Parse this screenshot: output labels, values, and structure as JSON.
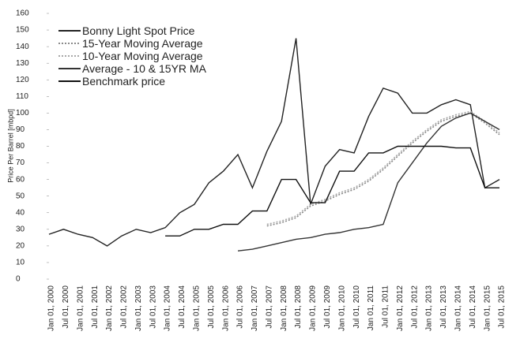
{
  "chart_data": {
    "type": "line",
    "y_label": "Price Per Barrel [mbpd]",
    "categories": [
      "Jan 01, 2000",
      "Jul 01, 2000",
      "Jan 01, 2001",
      "Jul 01, 2001",
      "Jan 01, 2002",
      "Jul 01, 2002",
      "Jan 01, 2003",
      "Jul 01, 2003",
      "Jan 01, 2004",
      "Jul 01, 2004",
      "Jan 01, 2005",
      "Jul 01, 2005",
      "Jan 01, 2006",
      "Jul 01, 2006",
      "Jan 01, 2007",
      "Jul 01, 2007",
      "Jan 01, 2008",
      "Jul 01, 2008",
      "Jan 01, 2009",
      "Jul 01, 2009",
      "Jan 01, 2010",
      "Jul 01, 2010",
      "Jan 01, 2011",
      "Jul 01, 2011",
      "Jan 01, 2012",
      "Jul 01, 2012",
      "Jan 01, 2013",
      "Jul 01, 2013",
      "Jan 01, 2014",
      "Jul 01, 2014",
      "Jan 01, 2015",
      "Jul 01, 2015"
    ],
    "series": [
      {
        "name": "Bonny Light Spot Price",
        "color": "#222222",
        "dash": false,
        "values": [
          27,
          30,
          27,
          25,
          20,
          26,
          30,
          28,
          31,
          40,
          45,
          58,
          65,
          75,
          55,
          77,
          95,
          145,
          45,
          68,
          78,
          76,
          98,
          115,
          112,
          100,
          100,
          105,
          108,
          105,
          55,
          60
        ]
      },
      {
        "name": "15-Year Moving Average",
        "color": "#8a8a8a",
        "dash": true,
        "values": [
          null,
          null,
          null,
          null,
          null,
          null,
          null,
          null,
          null,
          null,
          null,
          null,
          null,
          null,
          null,
          32,
          34,
          37,
          44,
          47,
          51,
          54,
          59,
          66,
          74,
          82,
          89,
          95,
          98,
          100,
          94,
          87
        ]
      },
      {
        "name": "10-Year Moving Average",
        "color": "#a8a8a8",
        "dash": true,
        "values": [
          null,
          null,
          null,
          null,
          null,
          null,
          null,
          null,
          null,
          null,
          null,
          null,
          null,
          null,
          null,
          33,
          35,
          38,
          45,
          48,
          52,
          55,
          60,
          67,
          75,
          83,
          90,
          96,
          99,
          101,
          95,
          88
        ]
      },
      {
        "name": "Average - 10 & 15YR MA",
        "color": "#333333",
        "dash": false,
        "values": [
          null,
          null,
          null,
          null,
          null,
          null,
          null,
          null,
          null,
          null,
          null,
          null,
          null,
          17,
          18,
          20,
          22,
          24,
          25,
          27,
          28,
          30,
          31,
          33,
          58,
          70,
          82,
          92,
          97,
          100,
          95,
          90
        ]
      },
      {
        "name": "Benchmark price",
        "color": "#111111",
        "dash": false,
        "values": [
          null,
          null,
          null,
          null,
          null,
          null,
          null,
          null,
          26,
          26,
          30,
          30,
          33,
          33,
          41,
          41,
          60,
          60,
          46,
          46,
          65,
          65,
          76,
          76,
          80,
          80,
          80,
          80,
          79,
          79,
          55,
          55
        ]
      }
    ],
    "ylim": [
      0,
      160
    ],
    "yticks": [
      0,
      10,
      20,
      30,
      40,
      50,
      60,
      70,
      80,
      90,
      100,
      110,
      120,
      130,
      140,
      150,
      160
    ],
    "grid": false,
    "legend": "top-left"
  }
}
